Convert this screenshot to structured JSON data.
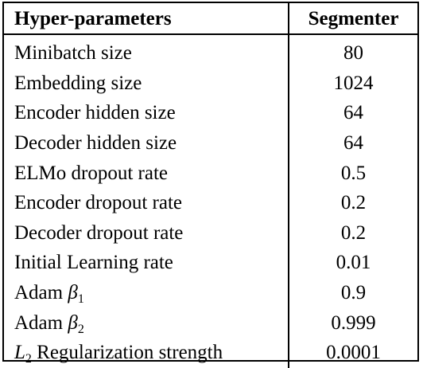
{
  "table": {
    "headers": [
      "Hyper-parameters",
      "Segmenter"
    ],
    "rows": [
      {
        "key": "Minibatch size",
        "value": "80"
      },
      {
        "key": "Embedding size",
        "value": "1024"
      },
      {
        "key": "Encoder hidden size",
        "value": "64"
      },
      {
        "key": "Decoder hidden size",
        "value": "64"
      },
      {
        "key": "ELMo dropout rate",
        "value": "0.5"
      },
      {
        "key": "Encoder dropout rate",
        "value": "0.2"
      },
      {
        "key": "Decoder dropout rate",
        "value": "0.2"
      },
      {
        "key": "Initial Learning rate",
        "value": "0.01"
      },
      {
        "key_prefix": "Adam",
        "key_symbol": "β",
        "key_sub": "1",
        "value": "0.9"
      },
      {
        "key_prefix": "Adam",
        "key_symbol": "β",
        "key_sub": "2",
        "value": "0.999"
      },
      {
        "key_symbol": "L",
        "key_sub": "2",
        "key_suffix": "Regularization strength",
        "value": "0.0001"
      }
    ]
  }
}
